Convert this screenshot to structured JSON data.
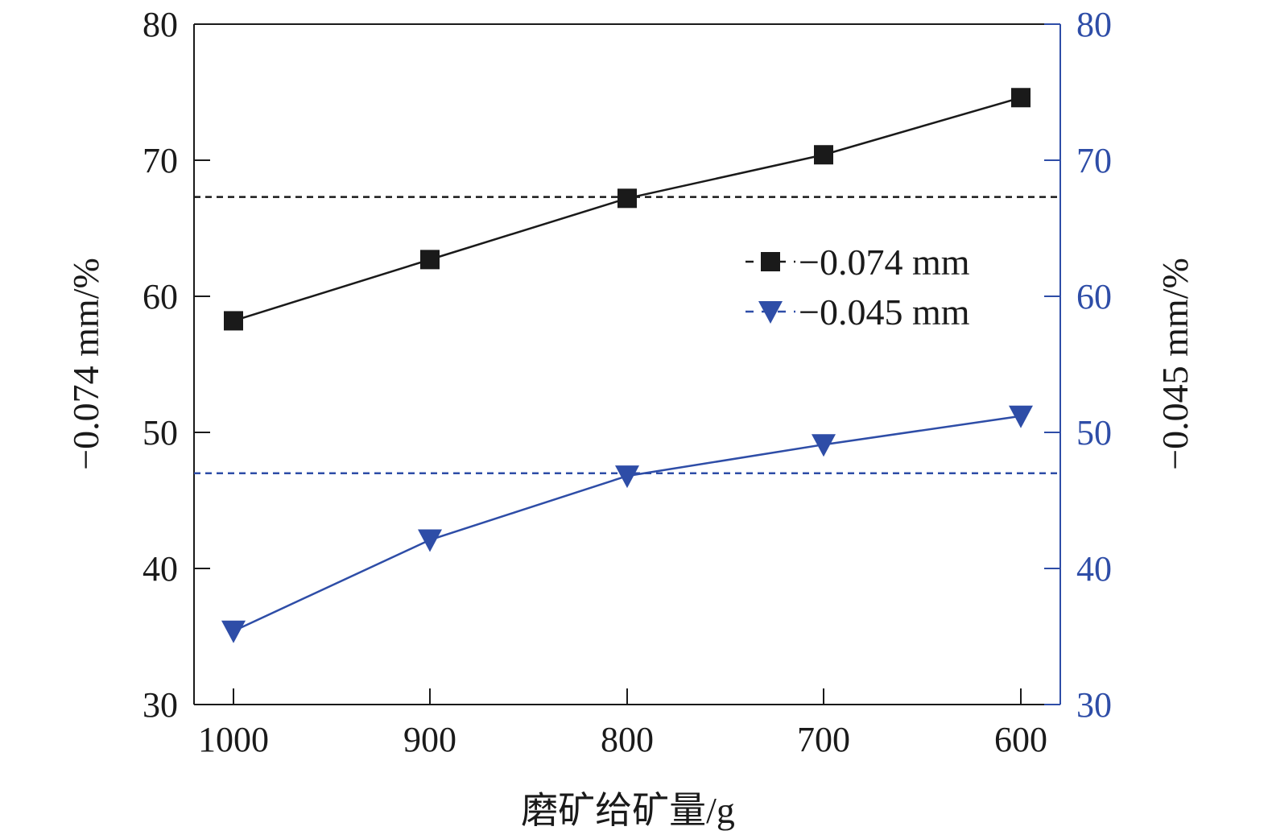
{
  "chart_data": {
    "type": "line",
    "x": [
      1000,
      900,
      800,
      700,
      600
    ],
    "x_tick_labels": [
      "1000",
      "900",
      "800",
      "700",
      "600"
    ],
    "xlabel": "磨矿给矿量/g",
    "x_reversed": true,
    "ylabel_left": "−0.074 mm/%",
    "ylabel_right": "−0.045 mm/%",
    "ylim_left": [
      30,
      80
    ],
    "ylim_right": [
      30,
      80
    ],
    "y_ticks": [
      30,
      40,
      50,
      60,
      70,
      80
    ],
    "y_tick_labels": [
      "30",
      "40",
      "50",
      "60",
      "70",
      "80"
    ],
    "grid": false,
    "legend_position": "upper-right",
    "series": [
      {
        "name": "−0.074 mm",
        "axis": "left",
        "marker": "square",
        "color": "#1a1a1a",
        "values": [
          58.2,
          62.7,
          67.2,
          70.4,
          74.6
        ],
        "reference_line": 67.3
      },
      {
        "name": "−0.045 mm",
        "axis": "right",
        "marker": "triangle-down",
        "color": "#2e4da7",
        "values": [
          35.4,
          42.1,
          46.8,
          49.1,
          51.2
        ],
        "reference_line": 47.0
      }
    ]
  }
}
